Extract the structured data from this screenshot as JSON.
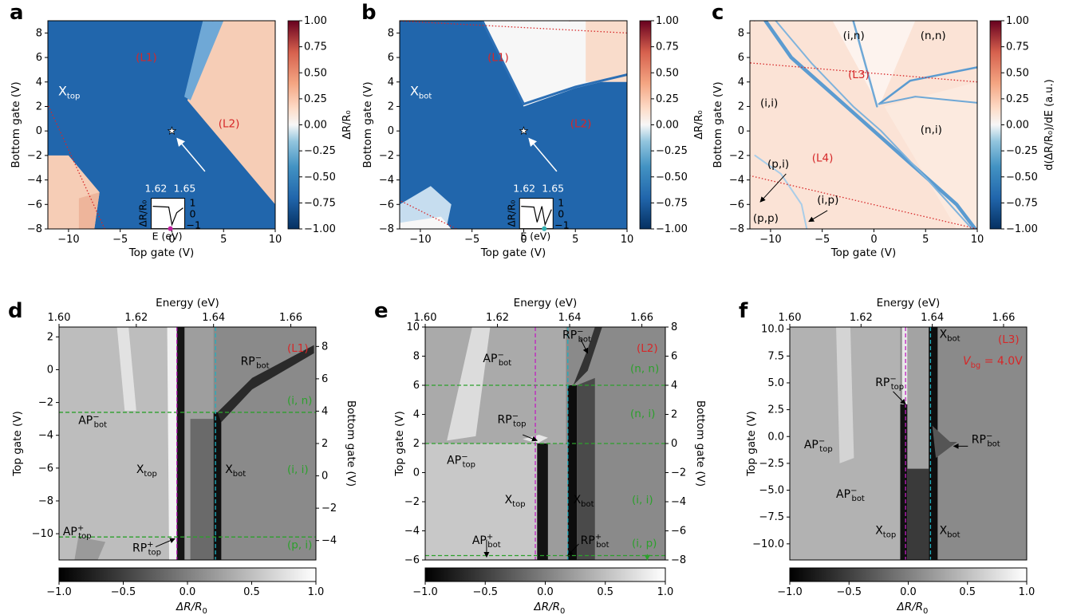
{
  "colors": {
    "red": "#d62728",
    "green": "#2ca02c",
    "magenta": "#c020c0",
    "cyan": "#20b0c0",
    "blue": "#2166ac",
    "pos": "#f4c2a6"
  },
  "chart_data": [
    {
      "panel": "a",
      "type": "heatmap",
      "xlabel": "Top gate (V)",
      "ylabel": "Bottom gate (V)",
      "xlim": [
        -12,
        10
      ],
      "ylim": [
        -8,
        9
      ],
      "xticks": [
        "−10",
        "−5",
        "0",
        "5",
        "10"
      ],
      "yticks": [
        "−8",
        "−6",
        "−4",
        "−2",
        "0",
        "2",
        "4",
        "6",
        "8"
      ],
      "colorbar_label": "ΔR/R₀",
      "colorbar_ticks": [
        "1.00",
        "0.75",
        "0.50",
        "0.25",
        "0.00",
        "−0.25",
        "−0.50",
        "−0.75",
        "−1.00"
      ],
      "annotations": [
        "(L1)",
        "(L2)"
      ],
      "region_label": "X",
      "region_sub": "top",
      "inset": {
        "xlabel": "E (eV)",
        "ylabel": "ΔR/R₀",
        "xticks": [
          "1.62",
          "1.65"
        ],
        "yticks": [
          "1",
          "0",
          "−1"
        ]
      }
    },
    {
      "panel": "b",
      "type": "heatmap",
      "xlabel": "Top gate (V)",
      "ylabel": "Bottom gate (V)",
      "xlim": [
        -12,
        10
      ],
      "ylim": [
        -8,
        9
      ],
      "xticks": [
        "−10",
        "−5",
        "0",
        "5",
        "10"
      ],
      "yticks": [
        "−8",
        "−6",
        "−4",
        "−2",
        "0",
        "2",
        "4",
        "6",
        "8"
      ],
      "colorbar_label": "ΔR/R₀",
      "colorbar_ticks": [
        "1.00",
        "0.75",
        "0.50",
        "0.25",
        "0.00",
        "−0.25",
        "−0.50",
        "−0.75",
        "−1.00"
      ],
      "annotations": [
        "(L1)",
        "(L2)"
      ],
      "region_label": "X",
      "region_sub": "bot",
      "inset": {
        "xlabel": "E (eV)",
        "ylabel": "ΔR/R₀",
        "xticks": [
          "1.62",
          "1.65"
        ],
        "yticks": [
          "1",
          "0",
          "−1"
        ]
      }
    },
    {
      "panel": "c",
      "type": "heatmap",
      "xlabel": "Top gate (V)",
      "ylabel": "Bottom gate (V)",
      "xlim": [
        -12,
        10
      ],
      "ylim": [
        -8,
        9
      ],
      "xticks": [
        "−10",
        "−5",
        "0",
        "5",
        "10"
      ],
      "yticks": [
        "−8",
        "−6",
        "−4",
        "−2",
        "0",
        "2",
        "4",
        "6",
        "8"
      ],
      "colorbar_label": "d(ΔR/R₀)/dE (a.u.)",
      "colorbar_ticks": [
        "1.00",
        "0.75",
        "0.50",
        "0.25",
        "0.00",
        "−0.25",
        "−0.50",
        "−0.75",
        "−1.00"
      ],
      "annotations": [
        "(L3)",
        "(L4)"
      ],
      "regions": [
        "(i,n)",
        "(n,n)",
        "(i,i)",
        "(n,i)",
        "(p,i)",
        "(i,p)",
        "(p,p)"
      ]
    },
    {
      "panel": "d",
      "type": "heatmap",
      "xlabel": "Energy (eV)",
      "ylabel": "Top gate (V)",
      "ylabel_right": "Bottom gate (V)",
      "xticks": [
        "1.60",
        "1.62",
        "1.64",
        "1.66"
      ],
      "yticks": [
        "2",
        "0",
        "−2",
        "−4",
        "−6",
        "−8",
        "−10"
      ],
      "yticks_right": [
        "8",
        "6",
        "4",
        "2",
        "0",
        "−2",
        "−4"
      ],
      "colorbar_label": "ΔR/R₀",
      "colorbar_ticks": [
        "−1.0",
        "−0.5",
        "0.0",
        "0.5",
        "1.0"
      ],
      "annotations": [
        "(L1)",
        "(i, n)",
        "(i, i)",
        "(p, i)"
      ],
      "labels": [
        {
          "base": "RP",
          "sub": "bot",
          "sup": "−"
        },
        {
          "base": "AP",
          "sub": "bot",
          "sup": "−"
        },
        {
          "base": "X",
          "sub": "top",
          "sup": ""
        },
        {
          "base": "X",
          "sub": "bot",
          "sup": ""
        },
        {
          "base": "AP",
          "sub": "top",
          "sup": "+"
        },
        {
          "base": "RP",
          "sub": "top",
          "sup": "+"
        }
      ]
    },
    {
      "panel": "e",
      "type": "heatmap",
      "xlabel": "Energy (eV)",
      "ylabel": "Top gate (V)",
      "ylabel_right": "Bottom gate (V)",
      "xticks": [
        "1.60",
        "1.62",
        "1.64",
        "1.66"
      ],
      "yticks": [
        "10",
        "8",
        "6",
        "4",
        "2",
        "0",
        "−2",
        "−4",
        "−6"
      ],
      "yticks_right": [
        "8",
        "6",
        "4",
        "2",
        "0",
        "−2",
        "−4",
        "−6",
        "−8"
      ],
      "colorbar_label": "ΔR/R₀",
      "colorbar_ticks": [
        "−1.0",
        "−0.5",
        "0.0",
        "0.5",
        "1.0"
      ],
      "annotations": [
        "(L2)",
        "(n, n)",
        "(n, i)",
        "(i, i)",
        "(i, p)"
      ],
      "labels": [
        {
          "base": "RP",
          "sub": "bot",
          "sup": "−"
        },
        {
          "base": "AP",
          "sub": "bot",
          "sup": "−"
        },
        {
          "base": "RP",
          "sub": "top",
          "sup": "−"
        },
        {
          "base": "AP",
          "sub": "top",
          "sup": "−"
        },
        {
          "base": "X",
          "sub": "top",
          "sup": ""
        },
        {
          "base": "X",
          "sub": "bot",
          "sup": ""
        },
        {
          "base": "AP",
          "sub": "bot",
          "sup": "+"
        },
        {
          "base": "RP",
          "sub": "bot",
          "sup": "+"
        }
      ]
    },
    {
      "panel": "f",
      "type": "heatmap",
      "xlabel": "Energy (eV)",
      "ylabel": "Top gate (V)",
      "xticks": [
        "1.60",
        "1.62",
        "1.64",
        "1.66"
      ],
      "yticks": [
        "10.0",
        "7.5",
        "5.0",
        "2.5",
        "0.0",
        "−2.5",
        "−5.0",
        "−7.5",
        "−10.0"
      ],
      "colorbar_label": "ΔR/R₀",
      "colorbar_ticks": [
        "−1.0",
        "−0.5",
        "0.0",
        "0.5",
        "1.0"
      ],
      "annotations": [
        "(L3)",
        "= 4.0V"
      ],
      "annotation_var": {
        "base": "V",
        "sub": "bg"
      },
      "labels": [
        {
          "base": "X",
          "sub": "bot",
          "sup": ""
        },
        {
          "base": "RP",
          "sub": "top",
          "sup": "−"
        },
        {
          "base": "AP",
          "sub": "top",
          "sup": "−"
        },
        {
          "base": "RP",
          "sub": "bot",
          "sup": "−"
        },
        {
          "base": "AP",
          "sub": "bot",
          "sup": "−"
        },
        {
          "base": "X",
          "sub": "top",
          "sup": ""
        },
        {
          "base": "X",
          "sub": "bot",
          "sup": ""
        }
      ]
    }
  ]
}
